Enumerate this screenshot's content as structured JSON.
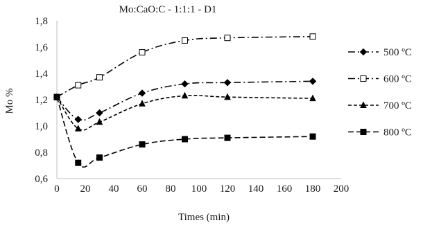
{
  "chart_data": {
    "type": "line",
    "title": "Mo:CaO:C - 1:1:1 -   D1",
    "xlabel": "Times (min)",
    "ylabel": "Mo %",
    "xlim": [
      0,
      200
    ],
    "ylim": [
      0.6,
      1.8
    ],
    "x_ticks": [
      "0",
      "20",
      "40",
      "60",
      "80",
      "100",
      "120",
      "140",
      "160",
      "180",
      "200"
    ],
    "y_ticks": [
      "0,6",
      "0,8",
      "1,0",
      "1,2",
      "1,4",
      "1,6",
      "1,8"
    ],
    "grid": false,
    "legend_position": "right",
    "series": [
      {
        "name": "500 ºC",
        "marker": "diamond-filled",
        "dash": "long-dash-dot",
        "color": "#000000",
        "points": [
          [
            0,
            1.22
          ],
          [
            15,
            1.05
          ],
          [
            30,
            1.1
          ],
          [
            60,
            1.25
          ],
          [
            90,
            1.32
          ],
          [
            120,
            1.33
          ],
          [
            180,
            1.34
          ]
        ]
      },
      {
        "name": "600 ºC",
        "marker": "square-open",
        "dash": "long-dash-dot",
        "color": "#000000",
        "points": [
          [
            0,
            1.22
          ],
          [
            15,
            1.31
          ],
          [
            30,
            1.37
          ],
          [
            60,
            1.56
          ],
          [
            90,
            1.65
          ],
          [
            120,
            1.67
          ],
          [
            180,
            1.68
          ]
        ]
      },
      {
        "name": "700 ºC",
        "marker": "triangle-filled",
        "dash": "short-dash",
        "color": "#000000",
        "points": [
          [
            0,
            1.22
          ],
          [
            15,
            0.98
          ],
          [
            30,
            1.03
          ],
          [
            60,
            1.17
          ],
          [
            90,
            1.23
          ],
          [
            120,
            1.22
          ],
          [
            180,
            1.21
          ]
        ]
      },
      {
        "name": "800 ºC",
        "marker": "square-filled",
        "dash": "dash",
        "color": "#000000",
        "points": [
          [
            0,
            1.22
          ],
          [
            15,
            0.72
          ],
          [
            30,
            0.76
          ],
          [
            60,
            0.86
          ],
          [
            90,
            0.9
          ],
          [
            120,
            0.91
          ],
          [
            180,
            0.92
          ]
        ]
      }
    ]
  }
}
